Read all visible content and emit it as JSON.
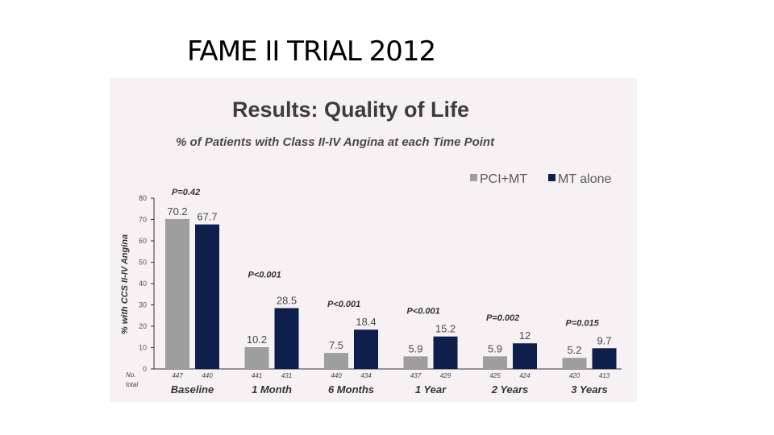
{
  "slide": {
    "title": "FAME II TRIAL 2012"
  },
  "chart_data": {
    "type": "bar",
    "title": "Results: Quality of Life",
    "subtitle": "% of Patients with Class II-IV Angina at each Time Point",
    "ylabel": "% with CCS II-IV Angina",
    "ylim": [
      0,
      80
    ],
    "yticks": [
      0,
      10,
      20,
      30,
      40,
      50,
      60,
      70,
      80
    ],
    "categories": [
      "Baseline",
      "1 Month",
      "6 Months",
      "1 Year",
      "2 Years",
      "3 Years"
    ],
    "series": [
      {
        "name": "PCI+MT",
        "color": "#9e9e9e",
        "values": [
          70.2,
          10.2,
          7.5,
          5.9,
          5.9,
          5.2
        ],
        "value_labels": [
          "70.2",
          "10.2",
          "7.5",
          "5.9",
          "5.9",
          "5.2"
        ],
        "n": [
          "447",
          "441",
          "440",
          "437",
          "425",
          "420"
        ]
      },
      {
        "name": "MT alone",
        "color": "#0e1f4b",
        "values": [
          67.7,
          28.5,
          18.4,
          15.2,
          12,
          9.7
        ],
        "value_labels": [
          "67.7",
          "28.5",
          "18.4",
          "15.2",
          "12",
          "9.7"
        ],
        "n": [
          "440",
          "431",
          "434",
          "429",
          "424",
          "413"
        ]
      }
    ],
    "p_values": [
      "P=0.42",
      "P<0.001",
      "P<0.001",
      "P<0.001",
      "P=0.002",
      "P=0.015"
    ],
    "n_caption": [
      "No.",
      "total"
    ],
    "legend_position": "top-right",
    "grid": false
  }
}
